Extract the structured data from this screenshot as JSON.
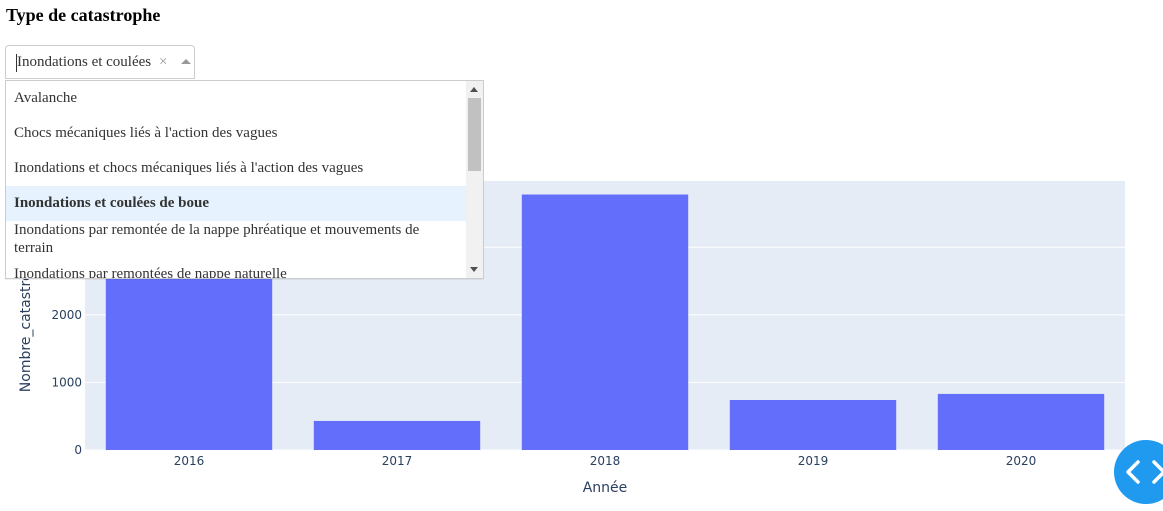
{
  "filter": {
    "title": "Type de catastrophe",
    "selected_value": "Inondations et coulées",
    "clear_label": "×",
    "options": [
      "Avalanche",
      "Chocs mécaniques liés à l'action des vagues",
      "Inondations et chocs mécaniques liés à l'action des vagues",
      "Inondations et coulées de boue",
      "Inondations par remontée de la nappe phréatique et mouvements de terrain",
      "Inondations par remontées de nappe naturelle"
    ],
    "selected_index": 3
  },
  "chart_data": {
    "type": "bar",
    "categories": [
      "2016",
      "2017",
      "2018",
      "2019",
      "2020"
    ],
    "values": [
      3550,
      430,
      3780,
      740,
      830
    ],
    "xlabel": "Année",
    "ylabel": "Nombre_catastrophes",
    "ylim": [
      0,
      3980
    ],
    "yticks": [
      0,
      1000,
      2000
    ],
    "bar_color": "#636efa",
    "plot_background": "#e5ecf6",
    "grid": true
  },
  "colors": {
    "accent": "#1f9aef",
    "selected_option_bg": "#e6f2fd"
  },
  "fab": {
    "icon": "code-icon"
  }
}
